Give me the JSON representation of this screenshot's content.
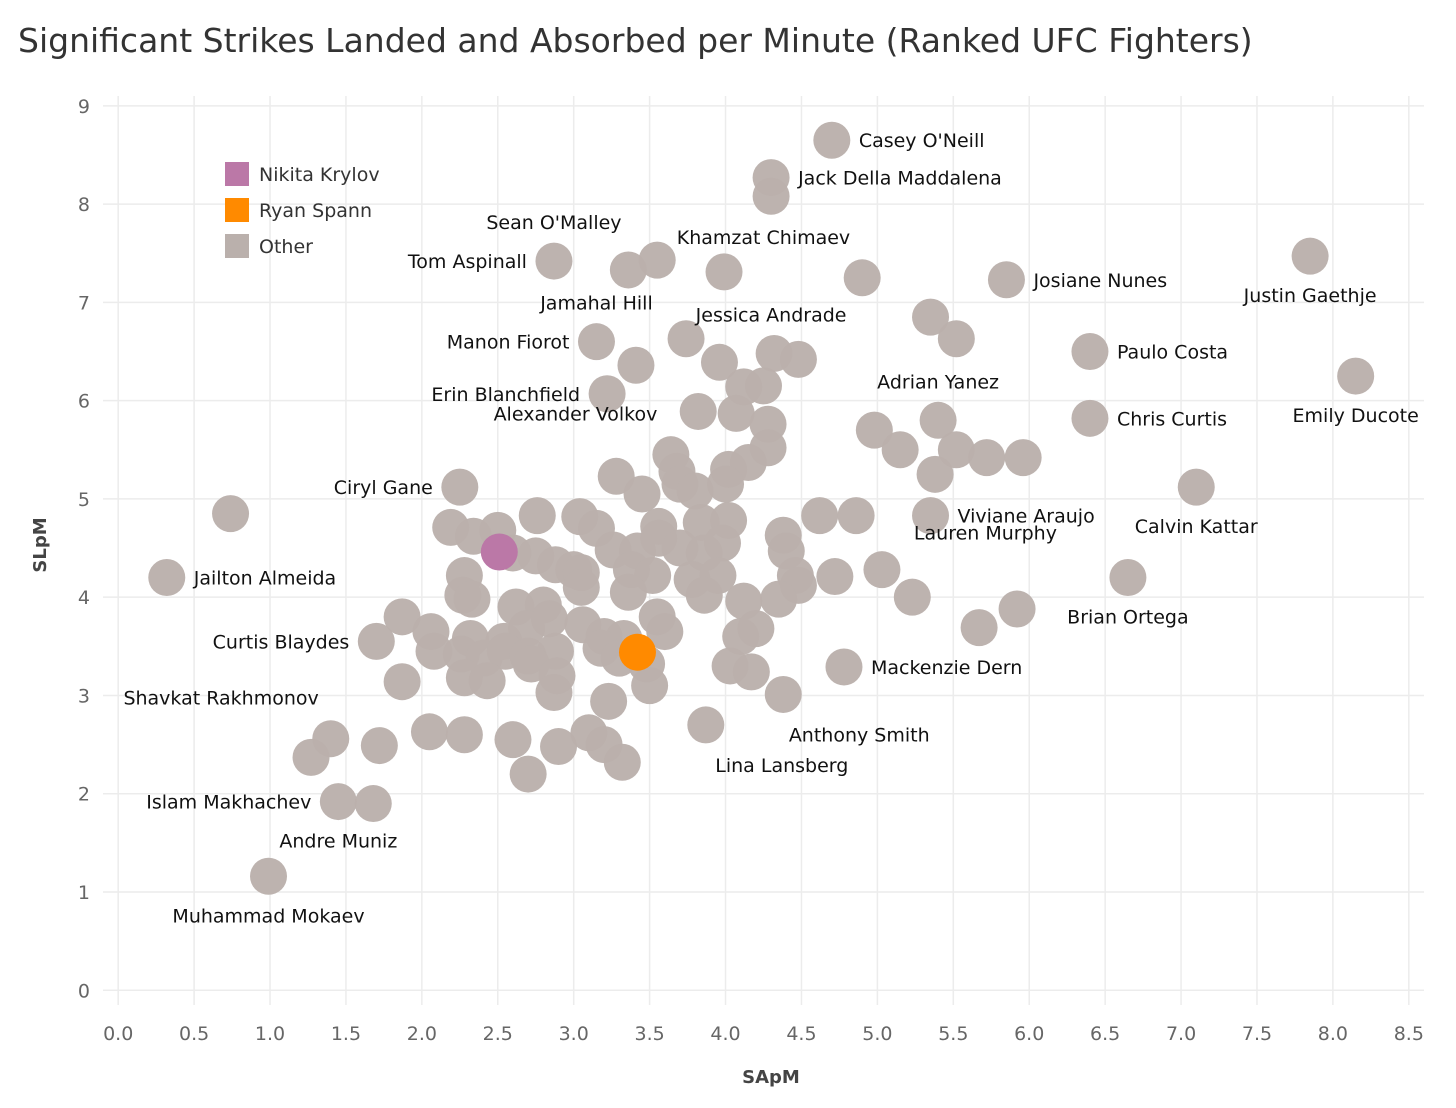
{
  "chart_data": {
    "type": "scatter",
    "title": "Significant Strikes Landed and Absorbed per Minute (Ranked UFC Fighters)",
    "xlabel": "SApM",
    "ylabel": "SLpM",
    "xlim": [
      -0.1,
      8.6
    ],
    "ylim": [
      -0.15,
      9.1
    ],
    "x_ticks": [
      "0.0",
      "0.5",
      "1.0",
      "1.5",
      "2.0",
      "2.5",
      "3.0",
      "3.5",
      "4.0",
      "4.5",
      "5.0",
      "5.5",
      "6.0",
      "6.5",
      "7.0",
      "7.5",
      "8.0",
      "8.5"
    ],
    "y_ticks": [
      "0",
      "1",
      "2",
      "3",
      "4",
      "5",
      "6",
      "7",
      "8",
      "9"
    ],
    "grid": true,
    "legend_position": "top-left",
    "colors": {
      "Nikita Krylov": "#bb78a7",
      "Ryan Spann": "#ff8a00",
      "Other": "#bab0ac"
    },
    "legend": [
      {
        "name": "Nikita Krylov",
        "color": "#bb78a7"
      },
      {
        "name": "Ryan Spann",
        "color": "#ff8a00"
      },
      {
        "name": "Other",
        "color": "#bab0ac"
      }
    ],
    "labeled_points": [
      {
        "label": "Casey O'Neill",
        "x": 4.7,
        "y": 8.65,
        "pos": "right"
      },
      {
        "label": "Jack Della Maddalena",
        "x": 4.3,
        "y": 8.27,
        "pos": "right"
      },
      {
        "label": "Sean O'Malley",
        "x": 2.87,
        "y": 7.42,
        "pos": "top"
      },
      {
        "label": "Tom Aspinall",
        "x": 2.87,
        "y": 7.42,
        "pos": "left"
      },
      {
        "label": "Khamzat Chimaev",
        "x": 4.9,
        "y": 7.25,
        "pos": "top-left"
      },
      {
        "label": "Josiane Nunes",
        "x": 5.85,
        "y": 7.23,
        "pos": "right"
      },
      {
        "label": "Justin Gaethje",
        "x": 7.85,
        "y": 7.47,
        "pos": "bottom"
      },
      {
        "label": "Jamahal Hill",
        "x": 3.15,
        "y": 6.6,
        "pos": "top"
      },
      {
        "label": "Manon Fiorot",
        "x": 3.15,
        "y": 6.6,
        "pos": "left"
      },
      {
        "label": "Jessica Andrade",
        "x": 4.3,
        "y": 6.48,
        "pos": "top"
      },
      {
        "label": "Paulo Costa",
        "x": 6.4,
        "y": 6.5,
        "pos": "right"
      },
      {
        "label": "Adrian Yanez",
        "x": 5.4,
        "y": 5.8,
        "pos": "top"
      },
      {
        "label": "Emily Ducote",
        "x": 8.15,
        "y": 6.25,
        "pos": "bottom"
      },
      {
        "label": "Erin Blanchfield",
        "x": 3.22,
        "y": 6.07,
        "pos": "left"
      },
      {
        "label": "Chris Curtis",
        "x": 6.4,
        "y": 5.82,
        "pos": "right"
      },
      {
        "label": "Alexander Volkov",
        "x": 3.63,
        "y": 5.45,
        "pos": "top-left"
      },
      {
        "label": "Ciryl Gane",
        "x": 2.25,
        "y": 5.12,
        "pos": "left"
      },
      {
        "label": "Calvin Kattar",
        "x": 7.1,
        "y": 5.12,
        "pos": "bottom"
      },
      {
        "label": "Viviane Araujo",
        "x": 5.35,
        "y": 4.83,
        "pos": "right"
      },
      {
        "label": "Lauren Murphy",
        "x": 5.03,
        "y": 4.28,
        "pos": "top-right"
      },
      {
        "label": "Jailton Almeida",
        "x": 0.32,
        "y": 4.2,
        "pos": "right"
      },
      {
        "label": "Brian Ortega",
        "x": 6.65,
        "y": 4.2,
        "pos": "bottom"
      },
      {
        "label": "Curtis Blaydes",
        "x": 1.7,
        "y": 3.55,
        "pos": "left"
      },
      {
        "label": "Mackenzie Dern",
        "x": 4.78,
        "y": 3.29,
        "pos": "right"
      },
      {
        "label": "Shavkat Rakhmonov",
        "x": 1.4,
        "y": 2.56,
        "pos": "top-left"
      },
      {
        "label": "Anthony Smith",
        "x": 4.38,
        "y": 3.01,
        "pos": "bottom-right"
      },
      {
        "label": "Lina Lansberg",
        "x": 3.87,
        "y": 2.7,
        "pos": "bottom-right"
      },
      {
        "label": "Islam Makhachev",
        "x": 1.45,
        "y": 1.92,
        "pos": "left"
      },
      {
        "label": "Andre Muniz",
        "x": 1.45,
        "y": 1.92,
        "pos": "bottom"
      },
      {
        "label": "Muhammad Mokaev",
        "x": 0.99,
        "y": 1.16,
        "pos": "bottom"
      }
    ],
    "highlight_points": [
      {
        "name": "Nikita Krylov",
        "x": 2.51,
        "y": 4.46,
        "color": "#bb78a7"
      },
      {
        "name": "Ryan Spann",
        "x": 3.42,
        "y": 3.44,
        "color": "#ff8a00"
      }
    ],
    "other_points": [
      [
        4.7,
        8.65
      ],
      [
        4.3,
        8.27
      ],
      [
        4.3,
        8.08
      ],
      [
        2.87,
        7.42
      ],
      [
        3.36,
        7.33
      ],
      [
        3.55,
        7.43
      ],
      [
        3.99,
        7.31
      ],
      [
        4.9,
        7.25
      ],
      [
        5.85,
        7.23
      ],
      [
        7.85,
        7.47
      ],
      [
        5.35,
        6.85
      ],
      [
        5.52,
        6.63
      ],
      [
        3.74,
        6.63
      ],
      [
        3.15,
        6.6
      ],
      [
        3.41,
        6.36
      ],
      [
        3.96,
        6.39
      ],
      [
        4.32,
        6.48
      ],
      [
        4.48,
        6.42
      ],
      [
        6.4,
        6.5
      ],
      [
        8.15,
        6.25
      ],
      [
        4.12,
        6.14
      ],
      [
        4.25,
        6.15
      ],
      [
        3.22,
        6.07
      ],
      [
        3.82,
        5.89
      ],
      [
        4.07,
        5.87
      ],
      [
        4.28,
        5.76
      ],
      [
        5.4,
        5.8
      ],
      [
        6.4,
        5.82
      ],
      [
        4.98,
        5.7
      ],
      [
        5.15,
        5.5
      ],
      [
        5.52,
        5.5
      ],
      [
        5.72,
        5.42
      ],
      [
        5.96,
        5.42
      ],
      [
        4.28,
        5.52
      ],
      [
        4.15,
        5.37
      ],
      [
        4.02,
        5.3
      ],
      [
        3.64,
        5.45
      ],
      [
        3.68,
        5.28
      ],
      [
        3.28,
        5.23
      ],
      [
        5.38,
        5.25
      ],
      [
        3.45,
        5.05
      ],
      [
        3.7,
        5.15
      ],
      [
        3.8,
        5.08
      ],
      [
        4.0,
        5.15
      ],
      [
        2.25,
        5.12
      ],
      [
        7.1,
        5.12
      ],
      [
        0.74,
        4.85
      ],
      [
        2.19,
        4.71
      ],
      [
        2.34,
        4.62
      ],
      [
        2.5,
        4.68
      ],
      [
        2.76,
        4.83
      ],
      [
        3.04,
        4.82
      ],
      [
        3.15,
        4.7
      ],
      [
        3.56,
        4.72
      ],
      [
        3.84,
        4.76
      ],
      [
        4.02,
        4.78
      ],
      [
        4.38,
        4.63
      ],
      [
        4.62,
        4.83
      ],
      [
        4.86,
        4.83
      ],
      [
        5.35,
        4.83
      ],
      [
        2.6,
        4.45
      ],
      [
        2.75,
        4.42
      ],
      [
        2.88,
        4.33
      ],
      [
        3.0,
        4.28
      ],
      [
        3.26,
        4.48
      ],
      [
        3.42,
        4.47
      ],
      [
        3.56,
        4.6
      ],
      [
        3.7,
        4.5
      ],
      [
        3.86,
        4.45
      ],
      [
        3.98,
        4.55
      ],
      [
        4.4,
        4.47
      ],
      [
        2.28,
        4.22
      ],
      [
        3.05,
        4.25
      ],
      [
        3.38,
        4.28
      ],
      [
        3.52,
        4.22
      ],
      [
        3.78,
        4.18
      ],
      [
        3.95,
        4.22
      ],
      [
        4.46,
        4.22
      ],
      [
        4.48,
        4.12
      ],
      [
        4.72,
        4.21
      ],
      [
        5.03,
        4.28
      ],
      [
        6.65,
        4.2
      ],
      [
        0.32,
        4.2
      ],
      [
        2.27,
        4.02
      ],
      [
        2.33,
        3.98
      ],
      [
        2.62,
        3.9
      ],
      [
        2.8,
        3.92
      ],
      [
        3.05,
        4.1
      ],
      [
        3.36,
        4.05
      ],
      [
        3.86,
        4.02
      ],
      [
        4.12,
        3.96
      ],
      [
        4.35,
        3.98
      ],
      [
        5.23,
        4.0
      ],
      [
        1.87,
        3.8
      ],
      [
        2.06,
        3.65
      ],
      [
        2.32,
        3.58
      ],
      [
        2.54,
        3.55
      ],
      [
        2.69,
        3.68
      ],
      [
        2.84,
        3.78
      ],
      [
        3.06,
        3.72
      ],
      [
        3.2,
        3.6
      ],
      [
        3.33,
        3.58
      ],
      [
        3.55,
        3.8
      ],
      [
        3.6,
        3.65
      ],
      [
        4.1,
        3.6
      ],
      [
        4.2,
        3.68
      ],
      [
        5.67,
        3.69
      ],
      [
        5.92,
        3.88
      ],
      [
        1.7,
        3.55
      ],
      [
        2.08,
        3.45
      ],
      [
        2.26,
        3.42
      ],
      [
        2.41,
        3.38
      ],
      [
        2.55,
        3.45
      ],
      [
        2.7,
        3.4
      ],
      [
        2.88,
        3.45
      ],
      [
        3.18,
        3.48
      ],
      [
        3.3,
        3.38
      ],
      [
        3.48,
        3.32
      ],
      [
        4.03,
        3.3
      ],
      [
        4.17,
        3.24
      ],
      [
        4.78,
        3.29
      ],
      [
        1.87,
        3.14
      ],
      [
        2.28,
        3.18
      ],
      [
        2.43,
        3.15
      ],
      [
        2.72,
        3.32
      ],
      [
        2.89,
        3.2
      ],
      [
        2.87,
        3.03
      ],
      [
        3.23,
        2.94
      ],
      [
        3.5,
        3.1
      ],
      [
        4.38,
        3.01
      ],
      [
        3.87,
        2.7
      ],
      [
        1.4,
        2.56
      ],
      [
        1.27,
        2.37
      ],
      [
        1.72,
        2.49
      ],
      [
        2.05,
        2.63
      ],
      [
        2.28,
        2.6
      ],
      [
        2.6,
        2.55
      ],
      [
        2.9,
        2.48
      ],
      [
        3.1,
        2.62
      ],
      [
        3.2,
        2.5
      ],
      [
        3.32,
        2.32
      ],
      [
        2.7,
        2.2
      ],
      [
        1.45,
        1.92
      ],
      [
        1.68,
        1.9
      ],
      [
        0.99,
        1.16
      ]
    ]
  }
}
